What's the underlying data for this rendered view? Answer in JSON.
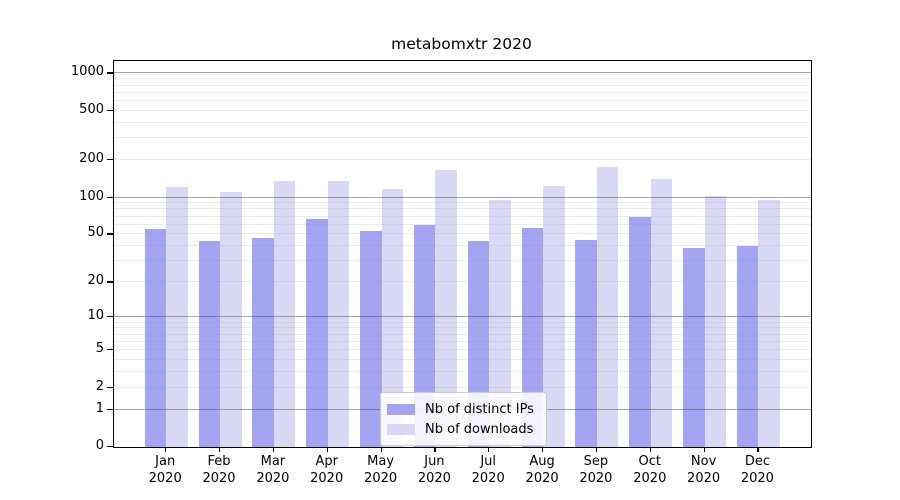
{
  "chart_data": {
    "type": "bar",
    "title": "metabomxtr 2020",
    "categories": [
      "Jan",
      "Feb",
      "Mar",
      "Apr",
      "May",
      "Jun",
      "Jul",
      "Aug",
      "Sep",
      "Oct",
      "Nov",
      "Dec"
    ],
    "category_year": "2020",
    "series": [
      {
        "name": "Nb of distinct IPs",
        "color": "#a4a4f2",
        "values": [
          55,
          44,
          47,
          67,
          53,
          60,
          44,
          57,
          45,
          69,
          39,
          40
        ]
      },
      {
        "name": "Nb of downloads",
        "color": "#d9d9f6",
        "values": [
          121,
          111,
          137,
          137,
          117,
          166,
          96,
          125,
          176,
          140,
          102,
          95
        ]
      }
    ],
    "y_ticks": [
      0,
      1,
      2,
      5,
      10,
      20,
      50,
      100,
      200,
      500,
      1000
    ],
    "y_scale": "log10(1+v)",
    "ylim": [
      0,
      1260
    ],
    "grid": {
      "shown": true,
      "major_lines": [
        1,
        10,
        100,
        1000
      ],
      "minor_lines": [
        2,
        3,
        4,
        5,
        6,
        7,
        8,
        9,
        20,
        30,
        40,
        50,
        60,
        70,
        80,
        90,
        200,
        300,
        400,
        500,
        600,
        700,
        800,
        900
      ]
    },
    "legend": {
      "position": "lower-center"
    },
    "colors": {
      "frame": "#000000",
      "background": "#ffffff",
      "major_grid": "#a5a5a5",
      "minor_grid": "#ececec"
    }
  }
}
